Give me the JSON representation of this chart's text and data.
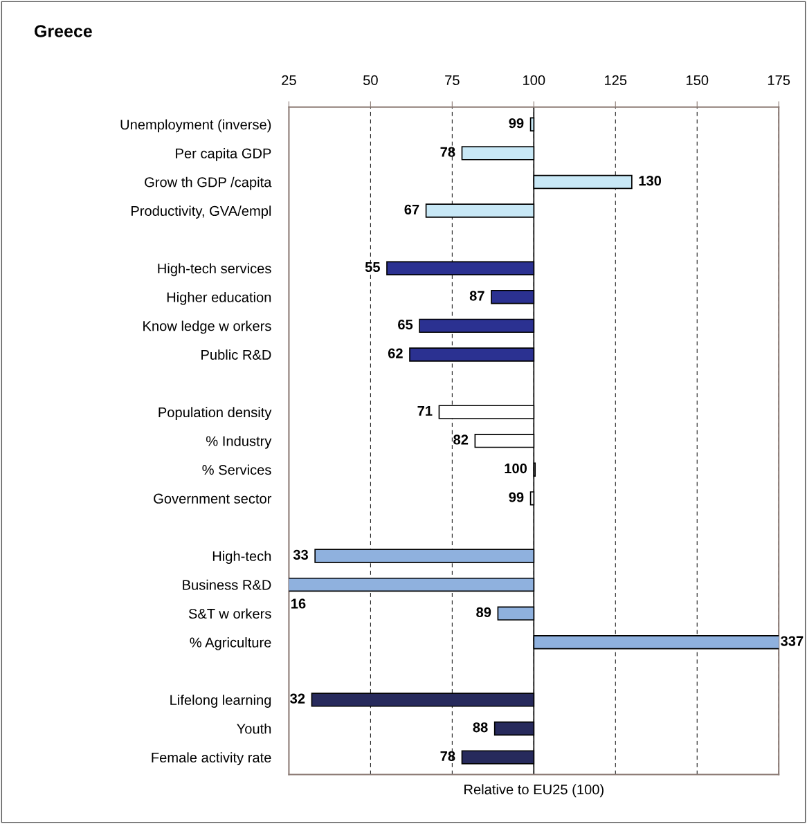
{
  "chart_data": {
    "type": "bar",
    "orientation": "horizontal",
    "title": "Greece",
    "xlabel": "Relative to EU25 (100)",
    "categories": [
      "Unemployment (inverse)",
      "Per capita GDP",
      "Grow th GDP /capita",
      "Productivity, GVA/empl",
      null,
      "High-tech services",
      "Higher education",
      "Know ledge w orkers",
      "Public R&D",
      null,
      "Population density",
      "% Industry",
      "% Services",
      "Government sector",
      null,
      "High-tech",
      "Business R&D",
      "S&T w orkers",
      "% Agriculture",
      null,
      "Lifelong learning",
      "Youth",
      "Female activity rate"
    ],
    "base": [
      100,
      100,
      100,
      100,
      null,
      100,
      100,
      100,
      100,
      null,
      100,
      100,
      100,
      100,
      null,
      100,
      100,
      100,
      100,
      null,
      100,
      100,
      100
    ],
    "values": [
      -1,
      -22,
      30,
      -33,
      null,
      -45,
      -13,
      -35,
      -38,
      null,
      -29,
      -18,
      0,
      -1,
      null,
      -67,
      -84,
      -11,
      237,
      null,
      -68,
      -12,
      -22
    ],
    "value_labels": [
      "99",
      "78",
      "130",
      "67",
      null,
      "55",
      "87",
      "65",
      "62",
      null,
      "71",
      "82",
      "100",
      "99",
      null,
      "33",
      "16",
      "89",
      "337",
      null,
      "32",
      "88",
      "78"
    ],
    "colors": [
      "#c8e8f6",
      "#c8e8f6",
      "#c8e8f6",
      "#c8e8f6",
      null,
      "#2b3191",
      "#2b3191",
      "#2b3191",
      "#2b3191",
      null,
      "#ffffff",
      "#ffffff",
      "#ffffff",
      "#ffffff",
      null,
      "#8fb1de",
      "#8fb1de",
      "#8fb1de",
      "#8fb1de",
      null,
      "#272a5c",
      "#272a5c",
      "#272a5c"
    ],
    "xlim": [
      25,
      175
    ],
    "xticks": [
      25,
      50,
      75,
      100,
      125,
      150,
      175
    ],
    "grid": "x",
    "ref_lines": [
      {
        "axis": "x",
        "value": 100,
        "color": "#000000",
        "line_style": "solid"
      }
    ]
  }
}
